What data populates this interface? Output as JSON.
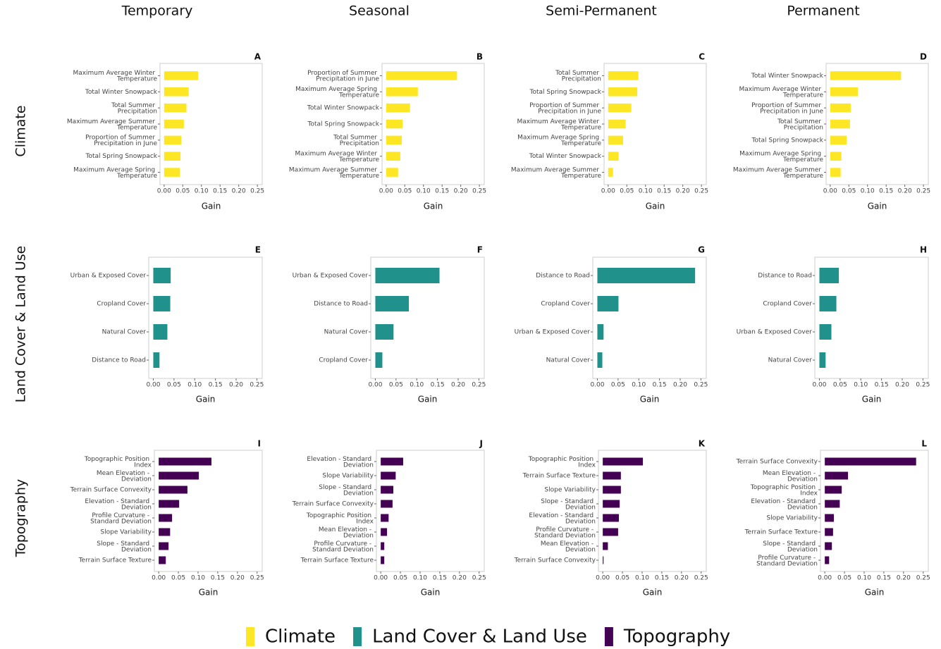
{
  "column_titles": [
    "Temporary",
    "Seasonal",
    "Semi-Permanent",
    "Permanent"
  ],
  "row_titles": [
    "Climate",
    "Land Cover & Land Use",
    "Topography"
  ],
  "legend": [
    {
      "name": "Climate",
      "color": "#fde725"
    },
    {
      "name": "Land Cover & Land Use",
      "color": "#21918c"
    },
    {
      "name": "Topography",
      "color": "#440154"
    }
  ],
  "chart_data": [
    {
      "type": "bar",
      "orientation": "horizontal",
      "panel_label": "A",
      "xlabel": "Gain",
      "color": "#fde725",
      "categories": [
        "Maximum Average Winter Temperature",
        "Total Winter Snowpack",
        "Total Summer Precipitation",
        "Maximum Average Summer Temperature",
        "Proportion of Summer Precipitation in June",
        "Total Spring Snowpack",
        "Maximum Average Spring Temperature"
      ],
      "values": [
        0.091,
        0.066,
        0.06,
        0.053,
        0.046,
        0.044,
        0.042
      ],
      "xlim": [
        -0.011,
        0.263
      ],
      "xticks": [
        {
          "value": 0,
          "label": "0.00"
        },
        0.05,
        {
          "value": 0.1,
          "label": "0.10"
        },
        0.15,
        {
          "value": 0.2,
          "label": "0.20"
        },
        0.25
      ]
    },
    {
      "type": "bar",
      "orientation": "horizontal",
      "panel_label": "B",
      "xlabel": "Gain",
      "color": "#fde725",
      "categories": [
        "Proportion of Summer Precipitation in June",
        "Maximum Average Spring Temperature",
        "Total Winter Snowpack",
        "Total Spring Snowpack",
        "Total Summer Precipitation",
        "Maximum Average Winter Temperature",
        "Maximum Average Summer Temperature"
      ],
      "values": [
        0.19,
        0.085,
        0.064,
        0.044,
        0.042,
        0.038,
        0.032
      ],
      "xlim": [
        -0.011,
        0.263
      ],
      "xticks": [
        {
          "value": 0,
          "label": "0.00"
        },
        0.05,
        {
          "value": 0.1,
          "label": "0.10"
        },
        0.15,
        {
          "value": 0.2,
          "label": "0.20"
        },
        0.25
      ]
    },
    {
      "type": "bar",
      "orientation": "horizontal",
      "panel_label": "C",
      "xlabel": "Gain",
      "color": "#fde725",
      "categories": [
        "Total Summer Precipitation",
        "Total Spring Snowpack",
        "Proportion of Summer Precipitation in June",
        "Maximum Average Winter Temperature",
        "Maximum Average Spring Temperature",
        "Total Winter Snowpack",
        "Maximum Average Summer Temperature"
      ],
      "values": [
        0.081,
        0.078,
        0.062,
        0.047,
        0.04,
        0.028,
        0.013
      ],
      "xlim": [
        -0.011,
        0.263
      ],
      "xticks": [
        {
          "value": 0,
          "label": "0.00"
        },
        0.05,
        {
          "value": 0.1,
          "label": "0.10"
        },
        0.15,
        {
          "value": 0.2,
          "label": "0.20"
        },
        0.25
      ]
    },
    {
      "type": "bar",
      "orientation": "horizontal",
      "panel_label": "D",
      "xlabel": "Gain",
      "color": "#fde725",
      "categories": [
        "Total Winter Snowpack",
        "Maximum Average Winter Temperature",
        "Proportion of Summer Precipitation in June",
        "Total Summer Precipitation",
        "Total Spring Snowpack",
        "Maximum Average Spring Temperature",
        "Maximum Average Summer Temperature"
      ],
      "values": [
        0.19,
        0.074,
        0.055,
        0.053,
        0.044,
        0.03,
        0.028
      ],
      "xlim": [
        -0.011,
        0.263
      ],
      "xticks": [
        {
          "value": 0,
          "label": "0.00"
        },
        0.05,
        {
          "value": 0.1,
          "label": "0.10"
        },
        0.15,
        {
          "value": 0.2,
          "label": "0.20"
        },
        0.25
      ]
    },
    {
      "type": "bar",
      "orientation": "horizontal",
      "panel_label": "E",
      "xlabel": "Gain",
      "color": "#21918c",
      "categories": [
        "Urban & Exposed Cover",
        "Cropland Cover",
        "Natural Cover",
        "Distance to Road"
      ],
      "values": [
        0.042,
        0.041,
        0.034,
        0.015
      ],
      "xlim": [
        -0.011,
        0.263
      ],
      "xticks": [
        {
          "value": 0,
          "label": "0.00"
        },
        0.05,
        {
          "value": 0.1,
          "label": "0.10"
        },
        0.15,
        {
          "value": 0.2,
          "label": "0.20"
        },
        0.25
      ]
    },
    {
      "type": "bar",
      "orientation": "horizontal",
      "panel_label": "F",
      "xlabel": "Gain",
      "color": "#21918c",
      "categories": [
        "Urban & Exposed Cover",
        "Distance to Road",
        "Natural Cover",
        "Cropland Cover"
      ],
      "values": [
        0.155,
        0.081,
        0.044,
        0.017
      ],
      "xlim": [
        -0.011,
        0.263
      ],
      "xticks": [
        {
          "value": 0,
          "label": "0.00"
        },
        0.05,
        {
          "value": 0.1,
          "label": "0.10"
        },
        0.15,
        {
          "value": 0.2,
          "label": "0.20"
        },
        0.25
      ]
    },
    {
      "type": "bar",
      "orientation": "horizontal",
      "panel_label": "G",
      "xlabel": "Gain",
      "color": "#21918c",
      "categories": [
        "Distance to Road",
        "Cropland Cover",
        "Urban & Exposed Cover",
        "Natural Cover"
      ],
      "values": [
        0.236,
        0.051,
        0.015,
        0.012
      ],
      "xlim": [
        -0.011,
        0.263
      ],
      "xticks": [
        {
          "value": 0,
          "label": "0.00"
        },
        0.05,
        {
          "value": 0.1,
          "label": "0.10"
        },
        0.15,
        {
          "value": 0.2,
          "label": "0.20"
        },
        0.25
      ]
    },
    {
      "type": "bar",
      "orientation": "horizontal",
      "panel_label": "H",
      "xlabel": "Gain",
      "color": "#21918c",
      "categories": [
        "Distance to Road",
        "Cropland Cover",
        "Urban & Exposed Cover",
        "Natural Cover"
      ],
      "values": [
        0.047,
        0.041,
        0.029,
        0.015
      ],
      "xlim": [
        -0.011,
        0.263
      ],
      "xticks": [
        {
          "value": 0,
          "label": "0.00"
        },
        0.05,
        {
          "value": 0.1,
          "label": "0.10"
        },
        0.15,
        {
          "value": 0.2,
          "label": "0.20"
        },
        0.25
      ]
    },
    {
      "type": "bar",
      "orientation": "horizontal",
      "panel_label": "I",
      "xlabel": "Gain",
      "color": "#440154",
      "categories": [
        "Topographic Position Index",
        "Mean Elevation - Deviation",
        "Terrain Surface Convexity",
        "Elevation - Standard Deviation",
        "Profile Curvature - Standard Deviation",
        "Slope Variability",
        "Slope - Standard Deviation",
        "Terrain Surface Texture"
      ],
      "values": [
        0.134,
        0.102,
        0.073,
        0.052,
        0.034,
        0.029,
        0.025,
        0.018
      ],
      "xlim": [
        -0.011,
        0.263
      ],
      "xticks": [
        {
          "value": 0,
          "label": "0.00"
        },
        0.05,
        {
          "value": 0.1,
          "label": "0.10"
        },
        0.15,
        {
          "value": 0.2,
          "label": "0.20"
        },
        0.25
      ]
    },
    {
      "type": "bar",
      "orientation": "horizontal",
      "panel_label": "J",
      "xlabel": "Gain",
      "color": "#440154",
      "categories": [
        "Elevation - Standard Deviation",
        "Slope Variability",
        "Slope - Standard Deviation",
        "Terrain Surface Convexity",
        "Topographic Position Index",
        "Mean Elevation - Deviation",
        "Profile Curvature - Standard Deviation",
        "Terrain Surface Texture"
      ],
      "values": [
        0.057,
        0.038,
        0.032,
        0.03,
        0.02,
        0.016,
        0.009,
        0.009
      ],
      "xlim": [
        -0.011,
        0.263
      ],
      "xticks": [
        {
          "value": 0,
          "label": "0.00"
        },
        0.05,
        {
          "value": 0.1,
          "label": "0.10"
        },
        0.15,
        {
          "value": 0.2,
          "label": "0.20"
        },
        0.25
      ]
    },
    {
      "type": "bar",
      "orientation": "horizontal",
      "panel_label": "K",
      "xlabel": "Gain",
      "color": "#440154",
      "categories": [
        "Topographic Position Index",
        "Terrain Surface Texture",
        "Slope Variability",
        "Slope - Standard Deviation",
        "Elevation - Standard Deviation",
        "Profile Curvature - Standard Deviation",
        "Mean Elevation - Deviation",
        "Terrain Surface Convexity"
      ],
      "values": [
        0.102,
        0.046,
        0.046,
        0.043,
        0.041,
        0.039,
        0.013,
        0.002
      ],
      "xlim": [
        -0.011,
        0.263
      ],
      "xticks": [
        {
          "value": 0,
          "label": "0.00"
        },
        0.05,
        {
          "value": 0.1,
          "label": "0.10"
        },
        0.15,
        {
          "value": 0.2,
          "label": "0.20"
        },
        0.25
      ]
    },
    {
      "type": "bar",
      "orientation": "horizontal",
      "panel_label": "L",
      "xlabel": "Gain",
      "color": "#440154",
      "categories": [
        "Terrain Surface Convexity",
        "Mean Elevation - Deviation",
        "Topographic Position Index",
        "Elevation - Standard Deviation",
        "Slope Variability",
        "Terrain Surface Texture",
        "Slope - Standard Deviation",
        "Profile Curvature - Standard Deviation"
      ],
      "values": [
        0.232,
        0.059,
        0.043,
        0.038,
        0.023,
        0.021,
        0.018,
        0.011
      ],
      "xlim": [
        -0.011,
        0.263
      ],
      "xticks": [
        {
          "value": 0,
          "label": "0.00"
        },
        0.05,
        {
          "value": 0.1,
          "label": "0.10"
        },
        0.15,
        {
          "value": 0.2,
          "label": "0.20"
        },
        0.25
      ]
    }
  ]
}
